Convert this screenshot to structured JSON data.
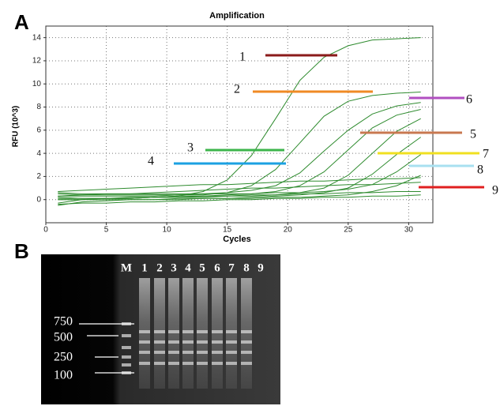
{
  "chart_data": {
    "type": "line",
    "title": "Amplification",
    "xlabel": "Cycles",
    "ylabel": "RFU (10^3)",
    "x": [
      1,
      3,
      5,
      7,
      9,
      11,
      13,
      15,
      17,
      19,
      21,
      23,
      25,
      27,
      29,
      31
    ],
    "color": "#2e8b2e",
    "grid": true,
    "xlim": [
      0,
      32
    ],
    "ylim": [
      -2,
      15
    ],
    "xticks": [
      0,
      5,
      10,
      15,
      20,
      25,
      30
    ],
    "yticks": [
      0,
      2,
      4,
      6,
      8,
      10,
      12,
      14
    ],
    "series": [
      {
        "values": [
          0.1,
          0.1,
          0.1,
          0.1,
          0.2,
          0.3,
          0.7,
          1.7,
          3.8,
          7,
          10.3,
          12.3,
          13.3,
          13.8,
          13.9,
          14
        ]
      },
      {
        "values": [
          0.3,
          0.3,
          0.3,
          0.3,
          0.3,
          0.4,
          0.4,
          0.6,
          1.2,
          2.6,
          4.9,
          7.2,
          8.5,
          9,
          9.2,
          9.3
        ]
      },
      {
        "values": [
          0.5,
          0.4,
          0.4,
          0.4,
          0.4,
          0.4,
          0.5,
          0.6,
          0.8,
          1.2,
          2.3,
          4.2,
          6,
          7.4,
          8.1,
          8.4
        ]
      },
      {
        "values": [
          -0.3,
          0,
          0.1,
          0.2,
          0.2,
          0.3,
          0.3,
          0.4,
          0.5,
          0.7,
          1.2,
          2.4,
          4.3,
          6.2,
          7.3,
          7.8
        ]
      },
      {
        "values": [
          0.2,
          0.1,
          0.1,
          0.1,
          0.2,
          0.2,
          0.2,
          0.3,
          0.3,
          0.4,
          0.6,
          1,
          2.1,
          4,
          5.9,
          7
        ]
      },
      {
        "values": [
          0,
          0,
          0,
          0,
          0,
          0.1,
          0.1,
          0.1,
          0.2,
          0.3,
          0.4,
          0.6,
          1,
          2.2,
          3.9,
          5.4
        ]
      },
      {
        "values": [
          0.6,
          0.5,
          0.5,
          0.5,
          0.5,
          0.5,
          0.5,
          0.5,
          0.5,
          0.6,
          0.6,
          0.7,
          0.9,
          1.3,
          2.4,
          3.9
        ]
      },
      {
        "values": [
          -0.5,
          -0.2,
          -0.1,
          0,
          0,
          0,
          0.1,
          0.1,
          0.1,
          0.2,
          0.2,
          0.3,
          0.4,
          0.7,
          1.2,
          2.1
        ]
      },
      {
        "values": [
          0.7,
          0.8,
          0.9,
          1,
          1.1,
          1.2,
          1.3,
          1.3,
          1.4,
          1.5,
          1.6,
          1.6,
          1.7,
          1.8,
          1.8,
          1.9
        ]
      },
      {
        "values": [
          0.3,
          0.4,
          0.5,
          0.5,
          0.6,
          0.7,
          0.8,
          0.9,
          1,
          1,
          1.1,
          1.2,
          1.3,
          1.3,
          1.4,
          1.5
        ]
      },
      {
        "values": [
          0,
          0,
          0.1,
          0.1,
          0.2,
          0.2,
          0.3,
          0.3,
          0.4,
          0.4,
          0.5,
          0.5,
          0.6,
          0.6,
          0.7,
          0.7
        ]
      },
      {
        "values": [
          -0.4,
          -0.3,
          -0.3,
          -0.2,
          -0.2,
          -0.1,
          -0.1,
          0,
          0,
          0.1,
          0.1,
          0.2,
          0.2,
          0.3,
          0.3,
          0.4
        ]
      }
    ],
    "annotations": [
      {
        "text": "1",
        "color": "#8b1a1a"
      },
      {
        "text": "2",
        "color": "#f08a24"
      },
      {
        "text": "3",
        "color": "#3cb44b"
      },
      {
        "text": "4",
        "color": "#1ba1e2"
      },
      {
        "text": "5",
        "color": "#c87850"
      },
      {
        "text": "6",
        "color": "#b04fc0"
      },
      {
        "text": "7",
        "color": "#f0e020"
      },
      {
        "text": "8",
        "color": "#a8e0f0"
      },
      {
        "text": "9",
        "color": "#e02020"
      }
    ]
  },
  "panel_labels": [
    "A",
    "B"
  ],
  "gel": {
    "lanes": [
      "M",
      "1",
      "2",
      "3",
      "4",
      "5",
      "6",
      "7",
      "8",
      "9"
    ],
    "ladder": [
      "750",
      "500",
      "250",
      "100"
    ]
  }
}
